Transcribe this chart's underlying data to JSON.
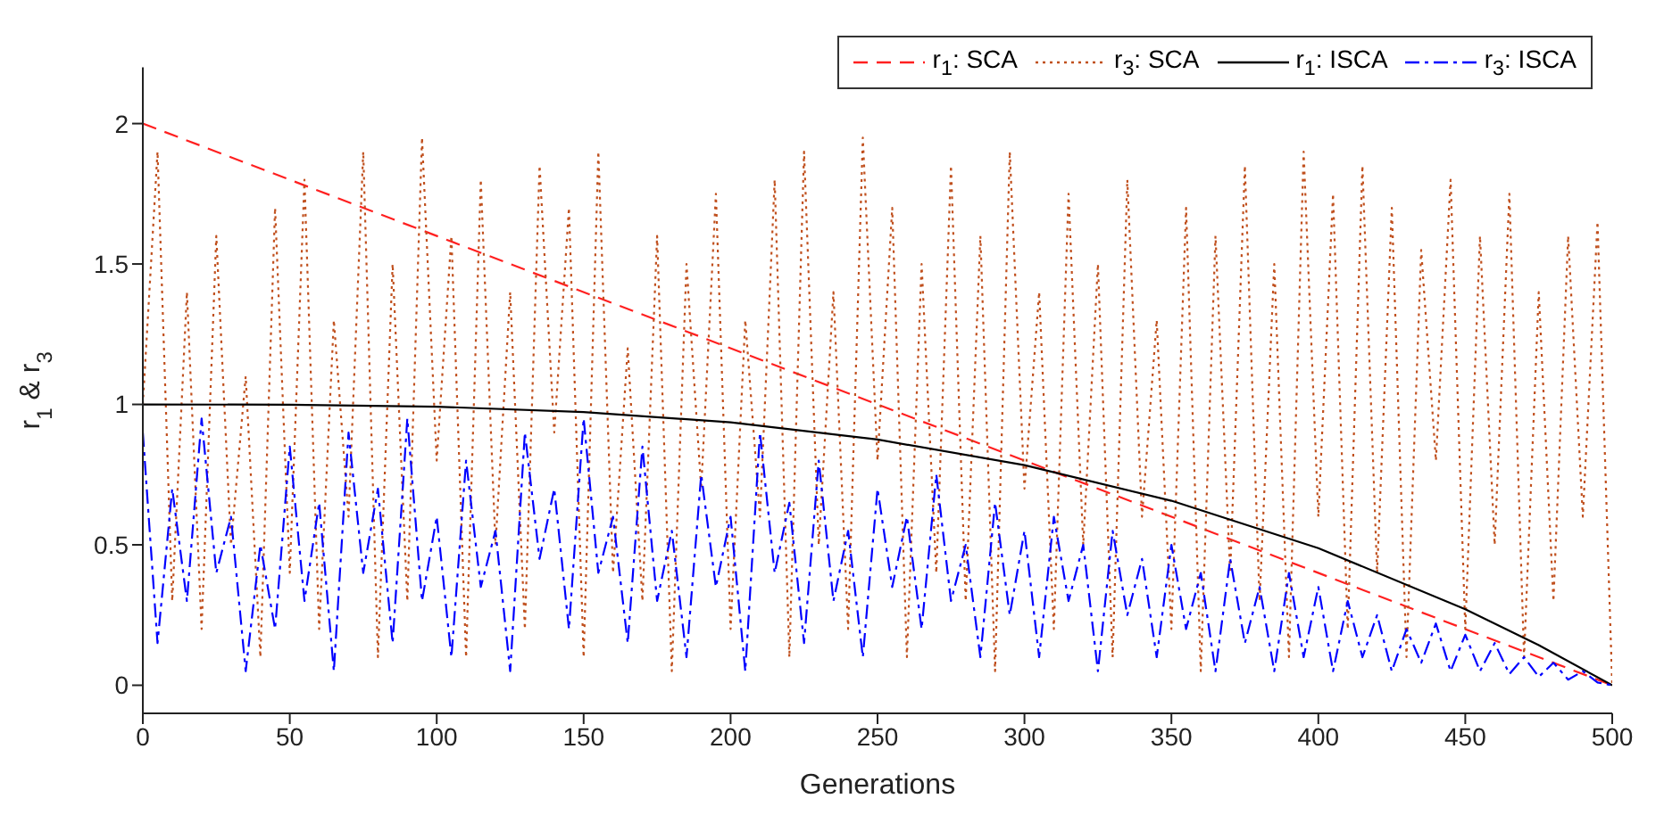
{
  "chart_data": {
    "type": "line",
    "xlabel": "Generations",
    "ylabel": "r$_{1}$ & r$_{3}$",
    "xlim": [
      0,
      500
    ],
    "xticks": [
      0,
      50,
      100,
      150,
      200,
      250,
      300,
      350,
      400,
      450,
      500
    ],
    "ylim": [
      -0.1,
      2.2
    ],
    "yticks": [
      0,
      0.5,
      1,
      1.5,
      2
    ],
    "grid": false,
    "legend": "top right",
    "marker": "none",
    "series": [
      {
        "name": "r$_{1}$: SCA",
        "color": "#ff2020",
        "line_style": "dashed",
        "x": [
          0,
          500
        ],
        "values": [
          2,
          0
        ]
      },
      {
        "name": "r$_{3}$: SCA",
        "color": "#c0501e",
        "line_style": "dotted",
        "x": [
          0,
          5,
          10,
          15,
          20,
          25,
          30,
          35,
          40,
          45,
          50,
          55,
          60,
          65,
          70,
          75,
          80,
          85,
          90,
          95,
          100,
          105,
          110,
          115,
          120,
          125,
          130,
          135,
          140,
          145,
          150,
          155,
          160,
          165,
          170,
          175,
          180,
          185,
          190,
          195,
          200,
          205,
          210,
          215,
          220,
          225,
          230,
          235,
          240,
          245,
          250,
          255,
          260,
          265,
          270,
          275,
          280,
          285,
          290,
          295,
          300,
          305,
          310,
          315,
          320,
          325,
          330,
          335,
          340,
          345,
          350,
          355,
          360,
          365,
          370,
          375,
          380,
          385,
          390,
          395,
          400,
          405,
          410,
          415,
          420,
          425,
          430,
          435,
          440,
          445,
          450,
          455,
          460,
          465,
          470,
          475,
          480,
          485,
          490,
          495,
          500
        ],
        "values": [
          1.0,
          1.9,
          0.3,
          1.4,
          0.2,
          1.6,
          0.5,
          1.1,
          0.1,
          1.7,
          0.4,
          1.8,
          0.2,
          1.3,
          0.6,
          1.9,
          0.1,
          1.5,
          0.3,
          1.95,
          0.8,
          1.6,
          0.1,
          1.8,
          0.5,
          1.4,
          0.2,
          1.85,
          0.9,
          1.7,
          0.1,
          1.9,
          0.4,
          1.2,
          0.3,
          1.6,
          0.05,
          1.5,
          0.7,
          1.75,
          0.2,
          1.3,
          0.6,
          1.8,
          0.1,
          1.9,
          0.5,
          1.4,
          0.2,
          1.95,
          0.8,
          1.7,
          0.1,
          1.5,
          0.4,
          1.85,
          0.3,
          1.6,
          0.05,
          1.9,
          0.7,
          1.4,
          0.2,
          1.75,
          0.5,
          1.5,
          0.1,
          1.8,
          0.6,
          1.3,
          0.2,
          1.7,
          0.05,
          1.6,
          0.4,
          1.85,
          0.3,
          1.5,
          0.1,
          1.9,
          0.6,
          1.75,
          0.2,
          1.85,
          0.4,
          1.7,
          0.1,
          1.55,
          0.8,
          1.8,
          0.2,
          1.6,
          0.5,
          1.75,
          0.1,
          1.4,
          0.3,
          1.6,
          0.6,
          1.65,
          0
        ]
      },
      {
        "name": "r$_{1}$: ISCA",
        "color": "#000000",
        "line_style": "solid",
        "x": [
          0,
          50,
          100,
          150,
          200,
          250,
          300,
          350,
          400,
          450,
          475,
          500
        ],
        "values": [
          1,
          0.999,
          0.992,
          0.973,
          0.936,
          0.875,
          0.784,
          0.657,
          0.488,
          0.271,
          0.143,
          0
        ]
      },
      {
        "name": "r$_{3}$: ISCA",
        "color": "#0000ff",
        "line_style": "dashdot",
        "x": [
          0,
          5,
          10,
          15,
          20,
          25,
          30,
          35,
          40,
          45,
          50,
          55,
          60,
          65,
          70,
          75,
          80,
          85,
          90,
          95,
          100,
          105,
          110,
          115,
          120,
          125,
          130,
          135,
          140,
          145,
          150,
          155,
          160,
          165,
          170,
          175,
          180,
          185,
          190,
          195,
          200,
          205,
          210,
          215,
          220,
          225,
          230,
          235,
          240,
          245,
          250,
          255,
          260,
          265,
          270,
          275,
          280,
          285,
          290,
          295,
          300,
          305,
          310,
          315,
          320,
          325,
          330,
          335,
          340,
          345,
          350,
          355,
          360,
          365,
          370,
          375,
          380,
          385,
          390,
          395,
          400,
          405,
          410,
          415,
          420,
          425,
          430,
          435,
          440,
          445,
          450,
          455,
          460,
          465,
          470,
          475,
          480,
          485,
          490,
          495,
          500
        ],
        "values": [
          0.9,
          0.15,
          0.7,
          0.3,
          0.95,
          0.4,
          0.6,
          0.05,
          0.5,
          0.2,
          0.85,
          0.3,
          0.65,
          0.05,
          0.9,
          0.4,
          0.7,
          0.15,
          0.95,
          0.3,
          0.6,
          0.1,
          0.8,
          0.35,
          0.55,
          0.05,
          0.9,
          0.45,
          0.7,
          0.2,
          0.95,
          0.4,
          0.6,
          0.15,
          0.85,
          0.3,
          0.55,
          0.1,
          0.75,
          0.35,
          0.6,
          0.05,
          0.9,
          0.4,
          0.65,
          0.15,
          0.8,
          0.3,
          0.55,
          0.1,
          0.7,
          0.35,
          0.6,
          0.2,
          0.75,
          0.3,
          0.5,
          0.1,
          0.65,
          0.25,
          0.55,
          0.1,
          0.6,
          0.3,
          0.5,
          0.05,
          0.55,
          0.25,
          0.45,
          0.1,
          0.5,
          0.2,
          0.4,
          0.05,
          0.45,
          0.15,
          0.35,
          0.05,
          0.4,
          0.1,
          0.35,
          0.05,
          0.3,
          0.1,
          0.25,
          0.05,
          0.2,
          0.08,
          0.22,
          0.05,
          0.18,
          0.05,
          0.15,
          0.04,
          0.1,
          0.03,
          0.08,
          0.02,
          0.05,
          0.01,
          0
        ]
      }
    ]
  }
}
